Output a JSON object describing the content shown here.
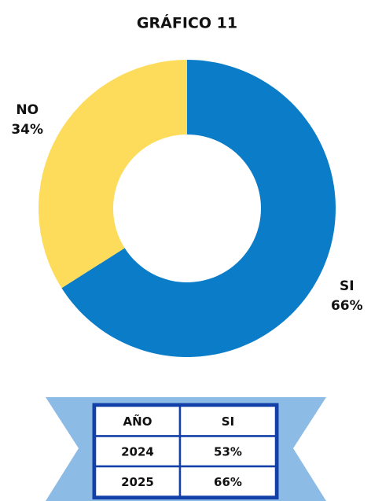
{
  "chart_data": {
    "type": "pie",
    "title": "GRÁFICO 11",
    "categories": [
      "SI",
      "NO"
    ],
    "values": [
      66,
      34
    ],
    "value_labels": [
      "66%",
      "34%"
    ],
    "colors": [
      "#0a7cc8",
      "#fddc5c"
    ],
    "donut": true
  },
  "table": {
    "header": [
      "AÑO",
      "SI"
    ],
    "rows": [
      [
        "2024",
        "53%"
      ],
      [
        "2025",
        "66%"
      ]
    ]
  }
}
